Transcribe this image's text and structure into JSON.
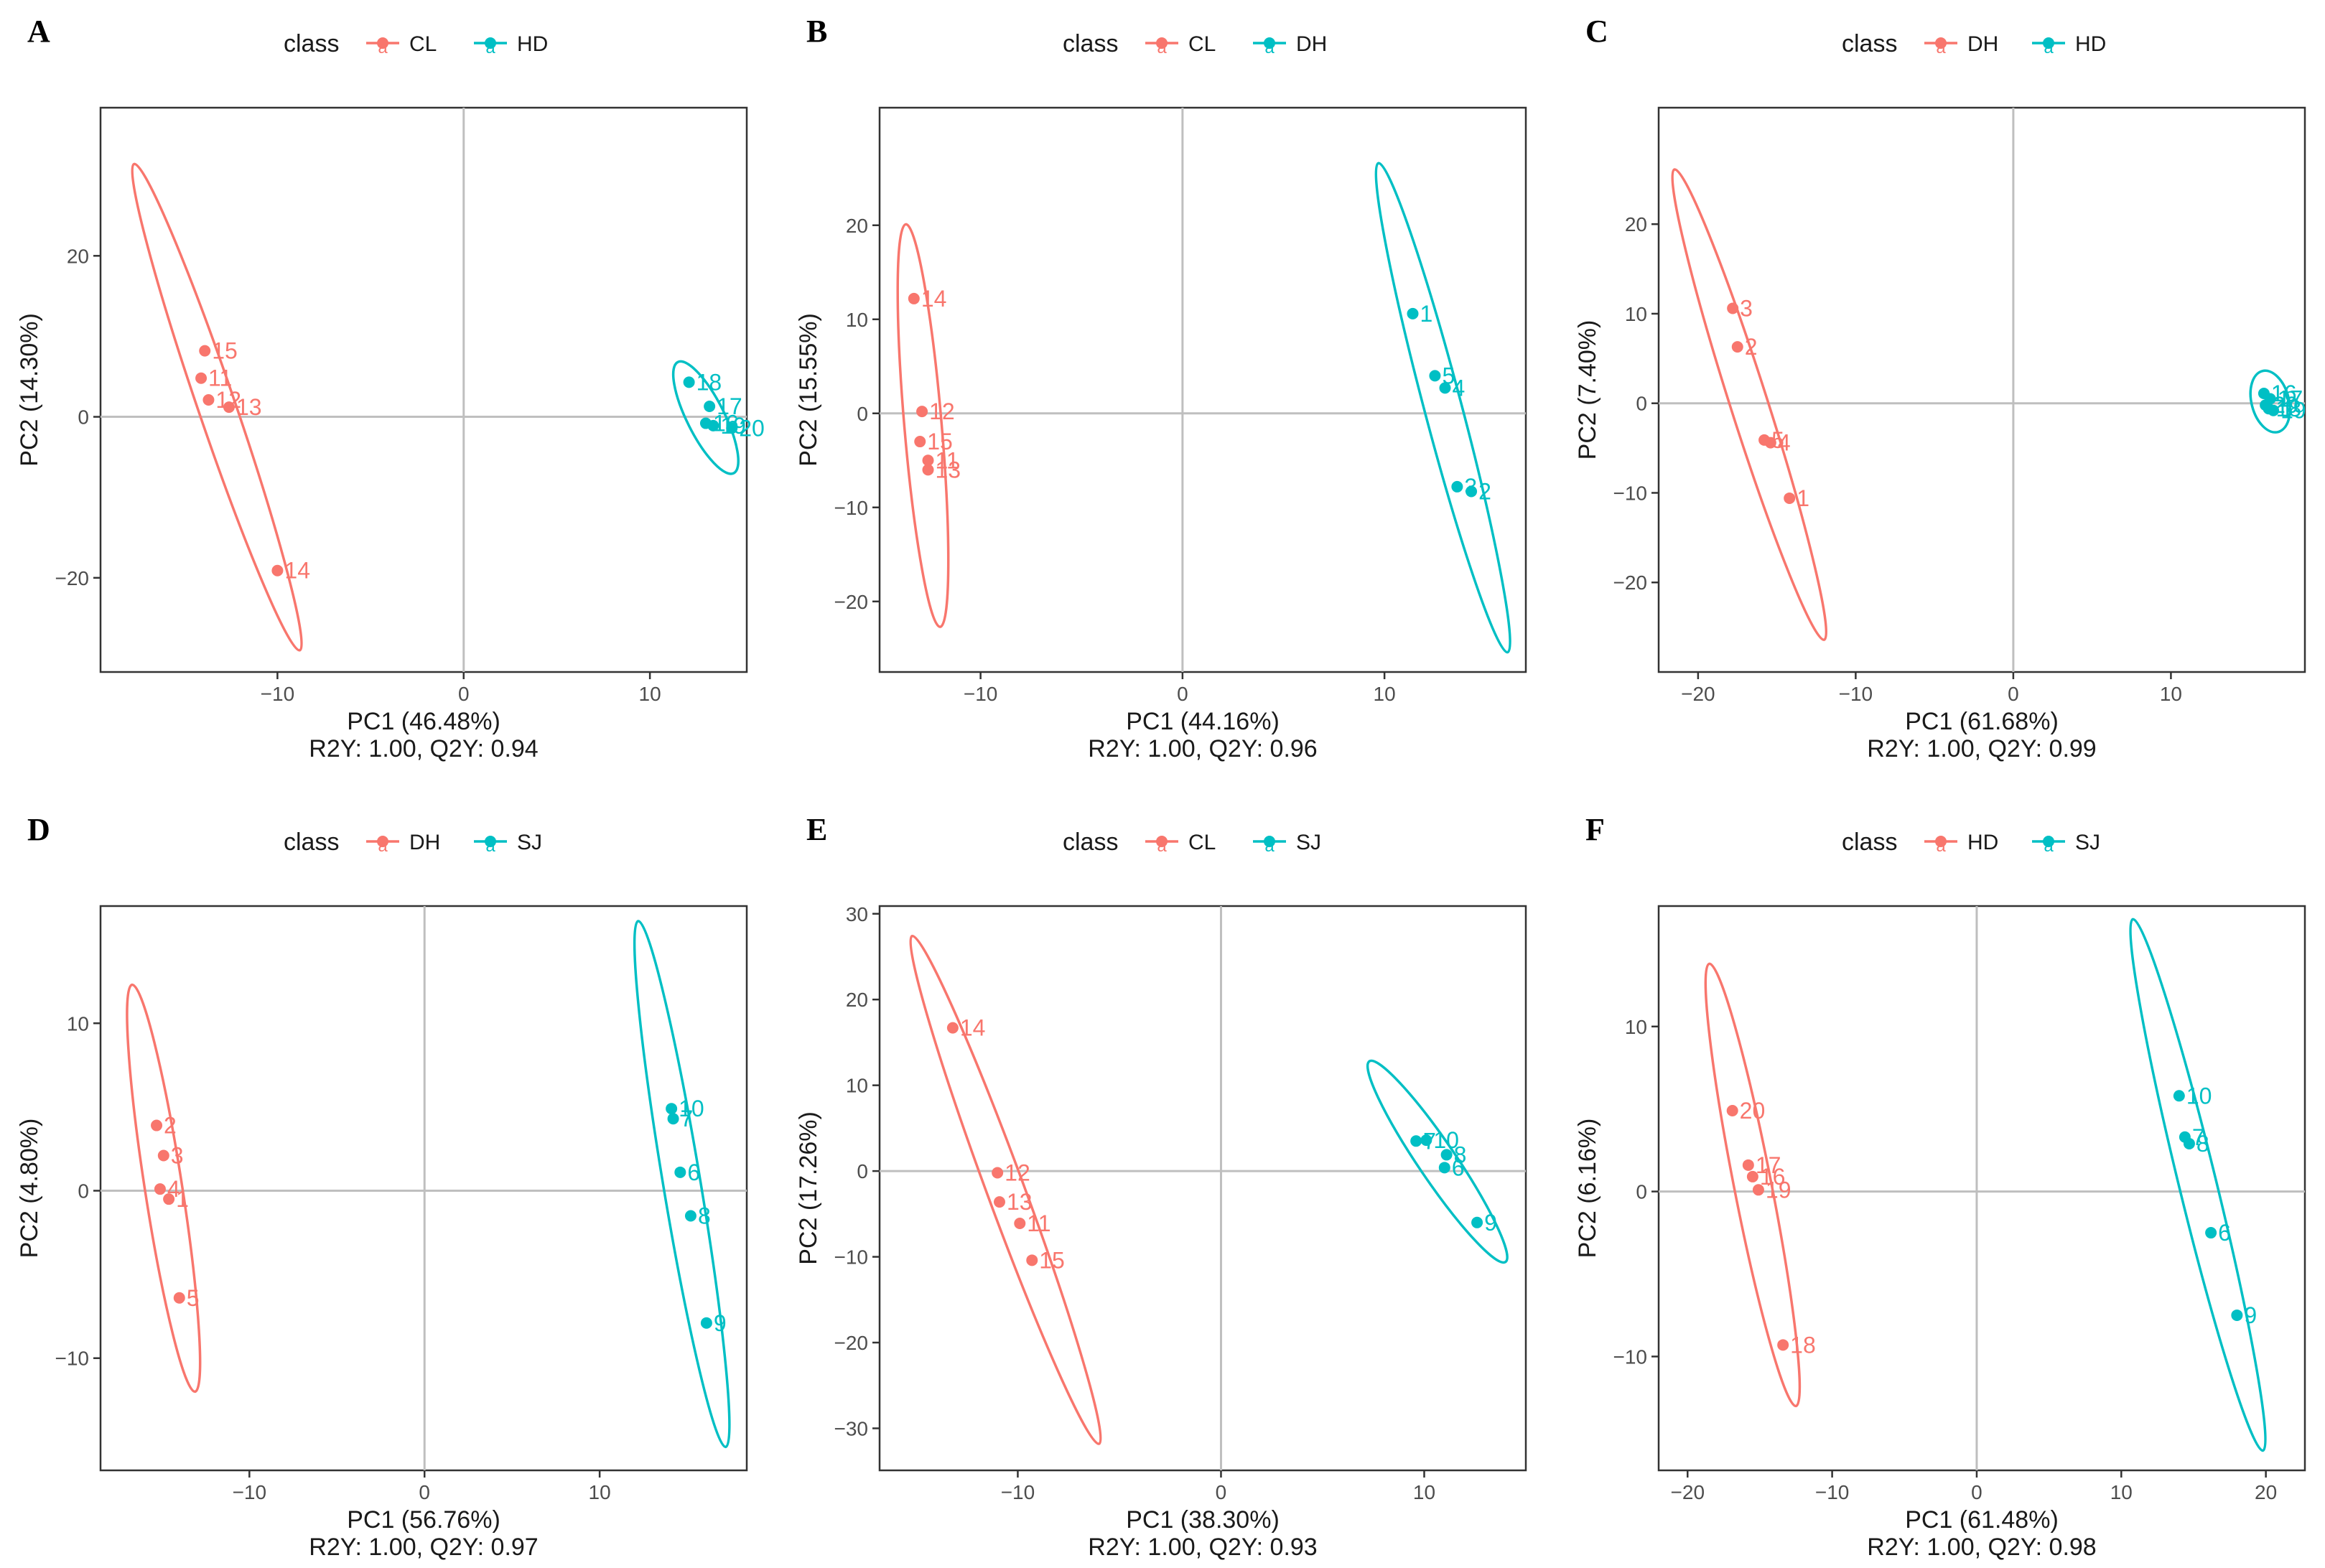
{
  "colors": {
    "group_a": "#F8766D",
    "group_b": "#00BFC4",
    "grid": "#bfbfbf",
    "axis_text": "#4d4d4d",
    "text": "#1a1a1a"
  },
  "legend_key_glyph": "a",
  "chart_data": [
    {
      "type": "scatter",
      "panel": "A",
      "legend_title": "class",
      "xlabel": "PC1 (46.48%)",
      "ylabel": "PC2 (14.30%)",
      "stats": "R2Y: 1.00, Q2Y: 0.94",
      "xlim": [
        -19.5,
        15.2
      ],
      "ylim": [
        -31.7,
        38.4
      ],
      "xticks": [
        {
          "v": -10,
          "l": "−10"
        },
        {
          "v": 0,
          "l": "0"
        },
        {
          "v": 10,
          "l": "10"
        }
      ],
      "yticks": [
        {
          "v": -20,
          "l": "−20"
        },
        {
          "v": 0,
          "l": "0"
        },
        {
          "v": 20,
          "l": "20"
        }
      ],
      "series": [
        {
          "name": "CL",
          "color": "#F8766D",
          "ellipse": [
            [
              -17.7,
              31.4
            ],
            [
              -8.8,
              -29.0
            ]
          ],
          "points": [
            {
              "x": -13.9,
              "y": 8.2,
              "label": "15"
            },
            {
              "x": -14.1,
              "y": 4.8,
              "label": "11"
            },
            {
              "x": -13.7,
              "y": 2.1,
              "label": "12"
            },
            {
              "x": -12.6,
              "y": 1.2,
              "label": "13"
            },
            {
              "x": -10.0,
              "y": -19.1,
              "label": "14"
            }
          ]
        },
        {
          "name": "HD",
          "color": "#00BFC4",
          "ellipse": [
            [
              11.5,
              6.8
            ],
            [
              14.5,
              -7.0
            ]
          ],
          "points": [
            {
              "x": 12.1,
              "y": 4.3,
              "label": "18"
            },
            {
              "x": 13.2,
              "y": 1.3,
              "label": "17"
            },
            {
              "x": 13.0,
              "y": -0.8,
              "label": "16"
            },
            {
              "x": 13.4,
              "y": -1.1,
              "label": "19"
            },
            {
              "x": 14.4,
              "y": -1.4,
              "label": "20"
            }
          ]
        }
      ]
    },
    {
      "type": "scatter",
      "panel": "B",
      "legend_title": "class",
      "xlabel": "PC1 (44.16%)",
      "ylabel": "PC2 (15.55%)",
      "stats": "R2Y: 1.00, Q2Y: 0.96",
      "xlim": [
        -15.0,
        17.0
      ],
      "ylim": [
        -27.5,
        32.5
      ],
      "xticks": [
        {
          "v": -10,
          "l": "−10"
        },
        {
          "v": 0,
          "l": "0"
        },
        {
          "v": 10,
          "l": "10"
        }
      ],
      "yticks": [
        {
          "v": -20,
          "l": "−20"
        },
        {
          "v": -10,
          "l": "−10"
        },
        {
          "v": 0,
          "l": "0"
        },
        {
          "v": 10,
          "l": "10"
        },
        {
          "v": 20,
          "l": "20"
        }
      ],
      "series": [
        {
          "name": "CL",
          "color": "#F8766D",
          "ellipse": [
            [
              -13.7,
              20.1
            ],
            [
              -12.0,
              -22.7
            ]
          ],
          "points": [
            {
              "x": -13.3,
              "y": 12.2,
              "label": "14"
            },
            {
              "x": -12.9,
              "y": 0.2,
              "label": "12"
            },
            {
              "x": -13.0,
              "y": -3.0,
              "label": "15"
            },
            {
              "x": -12.6,
              "y": -5.0,
              "label": "11"
            },
            {
              "x": -12.6,
              "y": -6.0,
              "label": "13"
            }
          ]
        },
        {
          "name": "DH",
          "color": "#00BFC4",
          "ellipse": [
            [
              9.7,
              26.6
            ],
            [
              16.1,
              -25.4
            ]
          ],
          "points": [
            {
              "x": 11.4,
              "y": 10.6,
              "label": "1"
            },
            {
              "x": 12.5,
              "y": 4.0,
              "label": "5"
            },
            {
              "x": 13.0,
              "y": 2.7,
              "label": "4"
            },
            {
              "x": 13.6,
              "y": -7.8,
              "label": "3"
            },
            {
              "x": 14.3,
              "y": -8.3,
              "label": "2"
            }
          ]
        }
      ]
    },
    {
      "type": "scatter",
      "panel": "C",
      "legend_title": "class",
      "xlabel": "PC1 (61.68%)",
      "ylabel": "PC2 (7.40%)",
      "stats": "R2Y: 1.00, Q2Y: 0.99",
      "xlim": [
        -22.5,
        18.5
      ],
      "ylim": [
        -30.0,
        33.0
      ],
      "xticks": [
        {
          "v": -20,
          "l": "−20"
        },
        {
          "v": -10,
          "l": "−10"
        },
        {
          "v": 0,
          "l": "0"
        },
        {
          "v": 10,
          "l": "10"
        }
      ],
      "yticks": [
        {
          "v": -20,
          "l": "−20"
        },
        {
          "v": -10,
          "l": "−10"
        },
        {
          "v": 0,
          "l": "0"
        },
        {
          "v": 10,
          "l": "10"
        },
        {
          "v": 20,
          "l": "20"
        }
      ],
      "series": [
        {
          "name": "DH",
          "color": "#F8766D",
          "ellipse": [
            [
              -21.5,
              26.1
            ],
            [
              -12.0,
              -26.4
            ]
          ],
          "points": [
            {
              "x": -17.8,
              "y": 10.6,
              "label": "3"
            },
            {
              "x": -17.5,
              "y": 6.3,
              "label": "2"
            },
            {
              "x": -15.8,
              "y": -4.1,
              "label": "5"
            },
            {
              "x": -15.4,
              "y": -4.4,
              "label": "4"
            },
            {
              "x": -14.2,
              "y": -10.6,
              "label": "1"
            }
          ]
        },
        {
          "name": "HD",
          "color": "#00BFC4",
          "ellipse": [
            [
              15.8,
              3.6
            ],
            [
              16.8,
              -3.2
            ]
          ],
          "points": [
            {
              "x": 15.9,
              "y": 1.1,
              "label": "16"
            },
            {
              "x": 16.3,
              "y": 0.5,
              "label": "17"
            },
            {
              "x": 16.0,
              "y": -0.2,
              "label": "20"
            },
            {
              "x": 16.5,
              "y": -0.8,
              "label": "19"
            },
            {
              "x": 16.2,
              "y": -0.6,
              "label": "18"
            }
          ]
        }
      ]
    },
    {
      "type": "scatter",
      "panel": "D",
      "legend_title": "class",
      "xlabel": "PC1 (56.76%)",
      "ylabel": "PC2 (4.80%)",
      "stats": "R2Y: 1.00, Q2Y: 0.97",
      "xlim": [
        -18.5,
        18.4
      ],
      "ylim": [
        -16.7,
        17.0
      ],
      "xticks": [
        {
          "v": -10,
          "l": "−10"
        },
        {
          "v": 0,
          "l": "0"
        },
        {
          "v": 10,
          "l": "10"
        }
      ],
      "yticks": [
        {
          "v": -10,
          "l": "−10"
        },
        {
          "v": 0,
          "l": "0"
        },
        {
          "v": 10,
          "l": "10"
        }
      ],
      "series": [
        {
          "name": "DH",
          "color": "#F8766D",
          "ellipse": [
            [
              -16.7,
              12.3
            ],
            [
              -13.1,
              -12.0
            ]
          ],
          "points": [
            {
              "x": -15.3,
              "y": 3.9,
              "label": "2"
            },
            {
              "x": -14.9,
              "y": 2.1,
              "label": "3"
            },
            {
              "x": -15.1,
              "y": 0.1,
              "label": "4"
            },
            {
              "x": -14.6,
              "y": -0.5,
              "label": "1"
            },
            {
              "x": -14.0,
              "y": -6.4,
              "label": "5"
            }
          ]
        },
        {
          "name": "SJ",
          "color": "#00BFC4",
          "ellipse": [
            [
              12.2,
              16.1
            ],
            [
              17.2,
              -15.3
            ]
          ],
          "points": [
            {
              "x": 14.1,
              "y": 4.9,
              "label": "10"
            },
            {
              "x": 14.2,
              "y": 4.3,
              "label": "7"
            },
            {
              "x": 14.6,
              "y": 1.1,
              "label": "6"
            },
            {
              "x": 15.2,
              "y": -1.5,
              "label": "8"
            },
            {
              "x": 16.1,
              "y": -7.9,
              "label": "9"
            }
          ]
        }
      ]
    },
    {
      "type": "scatter",
      "panel": "E",
      "legend_title": "class",
      "xlabel": "PC1 (38.30%)",
      "ylabel": "PC2 (17.26%)",
      "stats": "R2Y: 1.00, Q2Y: 0.93",
      "xlim": [
        -16.8,
        15.0
      ],
      "ylim": [
        -34.9,
        30.9
      ],
      "xticks": [
        {
          "v": -10,
          "l": "−10"
        },
        {
          "v": 0,
          "l": "0"
        },
        {
          "v": 10,
          "l": "10"
        }
      ],
      "yticks": [
        {
          "v": -30,
          "l": "−30"
        },
        {
          "v": -20,
          "l": "−20"
        },
        {
          "v": -10,
          "l": "−10"
        },
        {
          "v": 0,
          "l": "0"
        },
        {
          "v": 10,
          "l": "10"
        },
        {
          "v": 20,
          "l": "20"
        },
        {
          "v": 30,
          "l": "30"
        }
      ],
      "series": [
        {
          "name": "CL",
          "color": "#F8766D",
          "ellipse": [
            [
              -15.2,
              27.4
            ],
            [
              -6.0,
              -31.8
            ]
          ],
          "points": [
            {
              "x": -13.2,
              "y": 16.7,
              "label": "14"
            },
            {
              "x": -11.0,
              "y": -0.2,
              "label": "12"
            },
            {
              "x": -10.9,
              "y": -3.6,
              "label": "13"
            },
            {
              "x": -9.9,
              "y": -6.1,
              "label": "11"
            },
            {
              "x": -9.3,
              "y": -10.4,
              "label": "15"
            }
          ]
        },
        {
          "name": "SJ",
          "color": "#00BFC4",
          "ellipse": [
            [
              7.3,
              12.8
            ],
            [
              14.0,
              -10.6
            ]
          ],
          "points": [
            {
              "x": 9.6,
              "y": 3.5,
              "label": "7"
            },
            {
              "x": 10.1,
              "y": 3.6,
              "label": "10"
            },
            {
              "x": 11.1,
              "y": 1.9,
              "label": "8"
            },
            {
              "x": 11.0,
              "y": 0.4,
              "label": "6"
            },
            {
              "x": 12.6,
              "y": -6.0,
              "label": "9"
            }
          ]
        }
      ]
    },
    {
      "type": "scatter",
      "panel": "F",
      "legend_title": "class",
      "xlabel": "PC1 (61.48%)",
      "ylabel": "PC2 (6.16%)",
      "stats": "R2Y: 1.00, Q2Y: 0.98",
      "xlim": [
        -22.0,
        22.7
      ],
      "ylim": [
        -16.9,
        17.3
      ],
      "xticks": [
        {
          "v": -20,
          "l": "−20"
        },
        {
          "v": -10,
          "l": "−10"
        },
        {
          "v": 0,
          "l": "0"
        },
        {
          "v": 10,
          "l": "10"
        },
        {
          "v": 20,
          "l": "20"
        }
      ],
      "yticks": [
        {
          "v": -10,
          "l": "−10"
        },
        {
          "v": 0,
          "l": "0"
        },
        {
          "v": 10,
          "l": "10"
        }
      ],
      "series": [
        {
          "name": "HD",
          "color": "#F8766D",
          "ellipse": [
            [
              -18.5,
              13.8
            ],
            [
              -12.5,
              -13.0
            ]
          ],
          "points": [
            {
              "x": -16.9,
              "y": 4.9,
              "label": "20"
            },
            {
              "x": -15.8,
              "y": 1.6,
              "label": "17"
            },
            {
              "x": -15.5,
              "y": 0.9,
              "label": "16"
            },
            {
              "x": -15.1,
              "y": 0.1,
              "label": "19"
            },
            {
              "x": -13.4,
              "y": -9.3,
              "label": "18"
            }
          ]
        },
        {
          "name": "SJ",
          "color": "#00BFC4",
          "ellipse": [
            [
              10.8,
              16.5
            ],
            [
              19.8,
              -15.7
            ]
          ],
          "points": [
            {
              "x": 14.0,
              "y": 5.8,
              "label": "10"
            },
            {
              "x": 14.4,
              "y": 3.3,
              "label": "7"
            },
            {
              "x": 14.7,
              "y": 2.9,
              "label": "8"
            },
            {
              "x": 16.2,
              "y": -2.5,
              "label": "6"
            },
            {
              "x": 18.0,
              "y": -7.5,
              "label": "9"
            }
          ]
        }
      ]
    }
  ]
}
